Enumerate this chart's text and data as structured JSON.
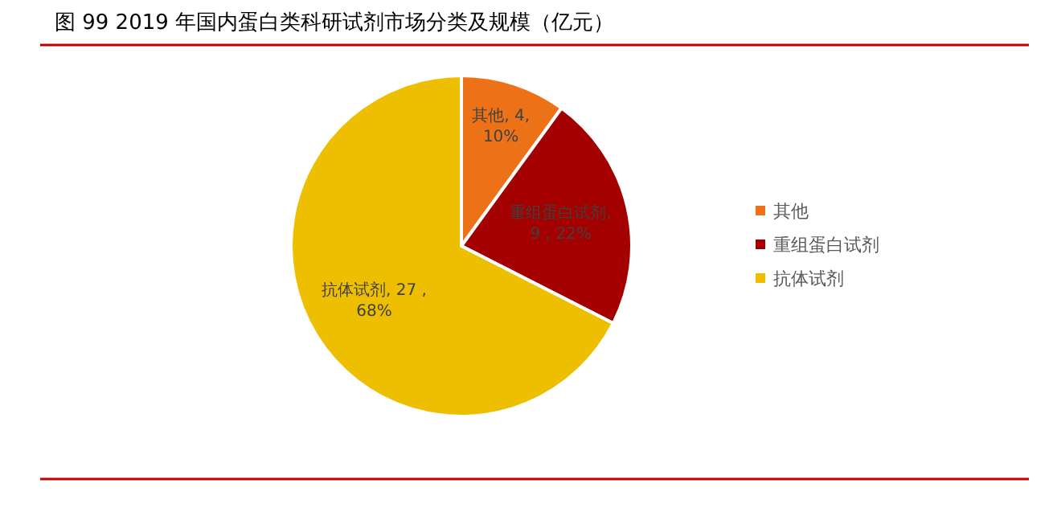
{
  "chart_data": {
    "type": "pie",
    "title": "图 99 2019 年国内蛋白类科研试剂市场分类及规模（亿元）",
    "categories": [
      "其他",
      "重组蛋白试剂",
      "抗体试剂"
    ],
    "values": [
      4,
      9,
      27
    ],
    "colors": [
      "#ed7117",
      "#a50000",
      "#eebf00"
    ],
    "value_labels": [
      ", 4,\n10%",
      ",\n9 , 22%",
      ", 27 ,\n68%"
    ],
    "legend": "right"
  }
}
